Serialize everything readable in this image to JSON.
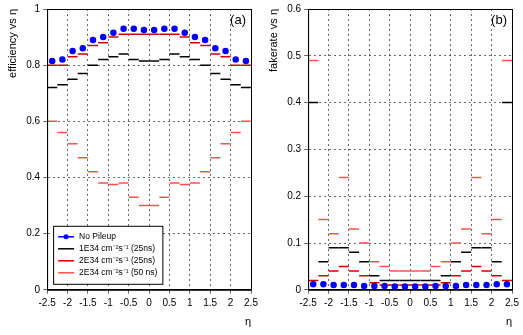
{
  "chart_data": [
    {
      "type": "scatter",
      "y_label": "efficiency vs η",
      "x_label": "η",
      "annotation": "(a)",
      "x": [
        -2.375,
        -2.125,
        -1.875,
        -1.625,
        -1.375,
        -1.125,
        -0.875,
        -0.625,
        -0.375,
        -0.125,
        0.125,
        0.375,
        0.625,
        0.875,
        1.125,
        1.375,
        1.625,
        1.875,
        2.125,
        2.375
      ],
      "xlim": [
        -2.5,
        2.5
      ],
      "xticks": [
        -2.5,
        -2,
        -1.5,
        -1,
        -0.5,
        0,
        0.5,
        1,
        1.5,
        2,
        2.5
      ],
      "ylim": [
        0,
        1
      ],
      "yticks": [
        0,
        0.2,
        0.4,
        0.6,
        0.8,
        1
      ],
      "grid": true,
      "legend": "lower left",
      "series": [
        {
          "name": "No Pileup",
          "color": "#0000ff",
          "marker": "circle",
          "values": [
            0.815,
            0.82,
            0.85,
            0.86,
            0.89,
            0.9,
            0.915,
            0.93,
            0.93,
            0.925,
            0.925,
            0.93,
            0.93,
            0.915,
            0.9,
            0.89,
            0.86,
            0.85,
            0.82,
            0.815
          ]
        },
        {
          "name": "1E34 cm⁻²s⁻¹ (25ns)",
          "color": "#000000",
          "marker": "line",
          "values": [
            0.72,
            0.73,
            0.75,
            0.77,
            0.8,
            0.82,
            0.83,
            0.84,
            0.82,
            0.815,
            0.815,
            0.82,
            0.84,
            0.83,
            0.82,
            0.8,
            0.77,
            0.75,
            0.73,
            0.72
          ]
        },
        {
          "name": "2E34 cm⁻²s⁻¹ (25ns)",
          "color": "#cc0000",
          "marker": "line",
          "values": [
            0.8,
            0.8,
            0.83,
            0.84,
            0.87,
            0.88,
            0.9,
            0.91,
            0.91,
            0.91,
            0.91,
            0.91,
            0.91,
            0.9,
            0.88,
            0.87,
            0.84,
            0.83,
            0.8,
            0.8
          ]
        },
        {
          "name": "2E34 cm⁻²s⁻¹ (50 ns)",
          "color": "#ff5050",
          "marker": "line",
          "values": [
            0.6,
            0.56,
            0.52,
            0.47,
            0.42,
            0.38,
            0.375,
            0.38,
            0.33,
            0.3,
            0.3,
            0.33,
            0.38,
            0.375,
            0.38,
            0.42,
            0.47,
            0.52,
            0.56,
            0.6
          ]
        }
      ]
    },
    {
      "type": "scatter",
      "y_label": "fakerate vs η",
      "x_label": "η",
      "annotation": "(b)",
      "x": [
        -2.375,
        -2.125,
        -1.875,
        -1.625,
        -1.375,
        -1.125,
        -0.875,
        -0.625,
        -0.375,
        -0.125,
        0.125,
        0.375,
        0.625,
        0.875,
        1.125,
        1.375,
        1.625,
        1.875,
        2.125,
        2.375
      ],
      "xlim": [
        -2.5,
        2.5
      ],
      "xticks": [
        -2.5,
        -2,
        -1.5,
        -1,
        -0.5,
        0,
        0.5,
        1,
        1.5,
        2,
        2.5
      ],
      "ylim": [
        0,
        0.6
      ],
      "yticks": [
        0,
        0.1,
        0.2,
        0.3,
        0.4,
        0.5,
        0.6
      ],
      "grid": true,
      "series": [
        {
          "color": "#0000ff",
          "marker": "circle",
          "values": [
            0.012,
            0.012,
            0.01,
            0.01,
            0.01,
            0.008,
            0.008,
            0.008,
            0.007,
            0.007,
            0.007,
            0.007,
            0.008,
            0.008,
            0.008,
            0.01,
            0.01,
            0.01,
            0.012,
            0.012
          ]
        },
        {
          "color": "#000000",
          "marker": "line",
          "values": [
            0.4,
            0.06,
            0.09,
            0.09,
            0.08,
            0.06,
            0.03,
            0.02,
            0.02,
            0.02,
            0.02,
            0.02,
            0.02,
            0.03,
            0.06,
            0.08,
            0.09,
            0.09,
            0.06,
            0.4
          ]
        },
        {
          "color": "#cc0000",
          "marker": "line",
          "values": [
            0.02,
            0.03,
            0.04,
            0.05,
            0.04,
            0.03,
            0.015,
            0.01,
            0.01,
            0.01,
            0.01,
            0.01,
            0.01,
            0.015,
            0.03,
            0.04,
            0.05,
            0.04,
            0.03,
            0.02
          ]
        },
        {
          "color": "#ff5050",
          "marker": "line",
          "values": [
            0.49,
            0.15,
            0.12,
            0.24,
            0.13,
            0.1,
            0.06,
            0.05,
            0.04,
            0.04,
            0.04,
            0.04,
            0.05,
            0.06,
            0.1,
            0.13,
            0.24,
            0.12,
            0.15,
            0.49
          ]
        }
      ]
    }
  ]
}
